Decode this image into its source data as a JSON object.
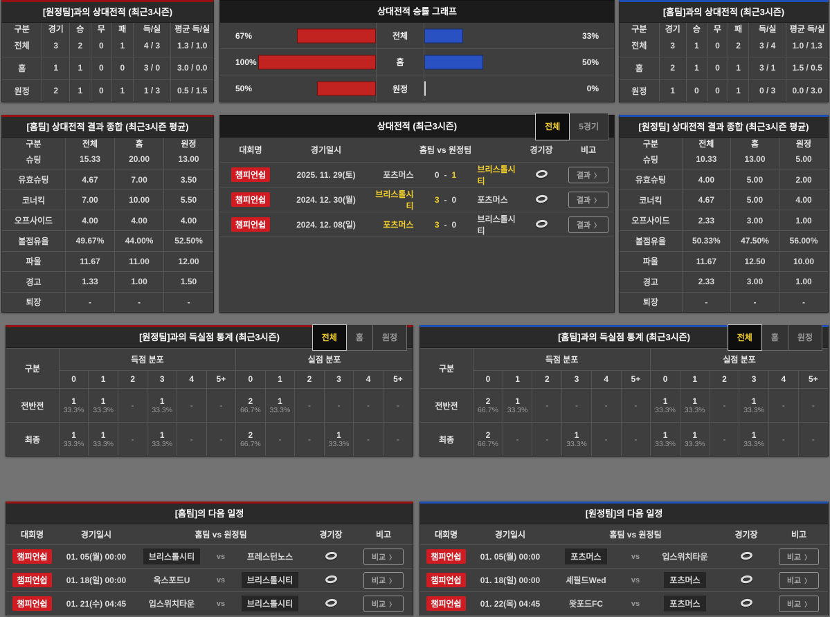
{
  "colors": {
    "accent_red": "#cf1c22",
    "accent_yellow": "#f3cf2a",
    "bar_red": "#c32320",
    "bar_blue": "#2a51c2",
    "panel_border_red": "#961111",
    "panel_border_blue": "#1d4fb4"
  },
  "icons": {
    "chevron_right": "〉",
    "stadium": "stadium-ring"
  },
  "panels": {
    "away_h2h": {
      "title": "[원정팀]과의 상대전적 (최근3시즌)",
      "headers": [
        "구분",
        "경기",
        "승",
        "무",
        "패",
        "득/실",
        "평균 득/실"
      ],
      "rows": [
        {
          "label": "전체",
          "cells": [
            "3",
            "2",
            "0",
            "1",
            "4 / 3",
            "1.3 / 1.0"
          ]
        },
        {
          "label": "홈",
          "cells": [
            "1",
            "1",
            "0",
            "0",
            "3 / 0",
            "3.0 / 0.0"
          ]
        },
        {
          "label": "원정",
          "cells": [
            "2",
            "1",
            "0",
            "1",
            "1 / 3",
            "0.5 / 1.5"
          ]
        }
      ]
    },
    "winrate_chart": {
      "title": "상대전적 승률 그래프",
      "rows": [
        {
          "label": "전체",
          "left_pct": "67%",
          "left_val": 67,
          "right_pct": "33%",
          "right_val": 33
        },
        {
          "label": "홈",
          "left_pct": "100%",
          "left_val": 100,
          "right_pct": "50%",
          "right_val": 50
        },
        {
          "label": "원정",
          "left_pct": "50%",
          "left_val": 50,
          "right_pct": "0%",
          "right_val": 0
        }
      ]
    },
    "home_h2h": {
      "title": "[홈팀]과의 상대전적 (최근3시즌)",
      "headers": [
        "구분",
        "경기",
        "승",
        "무",
        "패",
        "득/실",
        "평균 득/실"
      ],
      "rows": [
        {
          "label": "전체",
          "cells": [
            "3",
            "1",
            "0",
            "2",
            "3 / 4",
            "1.0 / 1.3"
          ]
        },
        {
          "label": "홈",
          "cells": [
            "2",
            "1",
            "0",
            "1",
            "3 / 1",
            "1.5 / 0.5"
          ]
        },
        {
          "label": "원정",
          "cells": [
            "1",
            "0",
            "0",
            "1",
            "0 / 3",
            "0.0 / 3.0"
          ]
        }
      ]
    },
    "home_summary": {
      "title": "[홈팀] 상대전적 결과 종합 (최근3시즌 평균)",
      "headers": [
        "구분",
        "전체",
        "홈",
        "원정"
      ],
      "rows": [
        {
          "label": "슈팅",
          "cells": [
            "15.33",
            "20.00",
            "13.00"
          ]
        },
        {
          "label": "유효슈팅",
          "cells": [
            "4.67",
            "7.00",
            "3.50"
          ]
        },
        {
          "label": "코너킥",
          "cells": [
            "7.00",
            "10.00",
            "5.50"
          ]
        },
        {
          "label": "오프사이드",
          "cells": [
            "4.00",
            "4.00",
            "4.00"
          ]
        },
        {
          "label": "볼점유율",
          "cells": [
            "49.67%",
            "44.00%",
            "52.50%"
          ]
        },
        {
          "label": "파울",
          "cells": [
            "11.67",
            "11.00",
            "12.00"
          ]
        },
        {
          "label": "경고",
          "cells": [
            "1.33",
            "1.00",
            "1.50"
          ]
        },
        {
          "label": "퇴장",
          "cells": [
            "-",
            "-",
            "-"
          ]
        }
      ]
    },
    "h2h_matches": {
      "title": "상대전적 (최근3시즌)",
      "tabs": [
        "전체",
        "5경기"
      ],
      "active_tab": 0,
      "headers": {
        "league": "대회명",
        "date": "경기일시",
        "teams": "홈팀  vs  원정팀",
        "stadium": "경기장",
        "note": "비고"
      },
      "button_label": "결과",
      "rows": [
        {
          "league": "챔피언쉽",
          "date": "2025. 11. 29(토)",
          "home": "포츠머스",
          "home_win": false,
          "score_home": "0",
          "score_away": "1",
          "away": "브리스톨시티",
          "away_win": true
        },
        {
          "league": "챔피언쉽",
          "date": "2024. 12. 30(월)",
          "home": "브리스톨시티",
          "home_win": true,
          "score_home": "3",
          "score_away": "0",
          "away": "포츠머스",
          "away_win": false
        },
        {
          "league": "챔피언쉽",
          "date": "2024. 12. 08(일)",
          "home": "포츠머스",
          "home_win": true,
          "score_home": "3",
          "score_away": "0",
          "away": "브리스톨시티",
          "away_win": false
        }
      ]
    },
    "away_summary": {
      "title": "[원정팀] 상대전적 결과 종합 (최근3시즌 평균)",
      "headers": [
        "구분",
        "전체",
        "홈",
        "원정"
      ],
      "rows": [
        {
          "label": "슈팅",
          "cells": [
            "10.33",
            "13.00",
            "5.00"
          ]
        },
        {
          "label": "유효슈팅",
          "cells": [
            "4.00",
            "5.00",
            "2.00"
          ]
        },
        {
          "label": "코너킥",
          "cells": [
            "4.67",
            "5.00",
            "4.00"
          ]
        },
        {
          "label": "오프사이드",
          "cells": [
            "2.33",
            "3.00",
            "1.00"
          ]
        },
        {
          "label": "볼점유율",
          "cells": [
            "50.33%",
            "47.50%",
            "56.00%"
          ]
        },
        {
          "label": "파울",
          "cells": [
            "11.67",
            "12.50",
            "10.00"
          ]
        },
        {
          "label": "경고",
          "cells": [
            "2.33",
            "3.00",
            "1.00"
          ]
        },
        {
          "label": "퇴장",
          "cells": [
            "-",
            "-",
            "-"
          ]
        }
      ]
    },
    "away_goal_stats": {
      "title": "[원정팀]과의 득실점 통계 (최근3시즌)",
      "tabs": [
        "전체",
        "홈",
        "원정"
      ],
      "active_tab": 0,
      "corner_header": "구분",
      "group_headers": [
        "득점 분포",
        "실점 분포"
      ],
      "col_headers": [
        "0",
        "1",
        "2",
        "3",
        "4",
        "5+"
      ],
      "rows": [
        {
          "label": "전반전",
          "scored": [
            {
              "n": "1",
              "p": "33.3%"
            },
            {
              "n": "1",
              "p": "33.3%"
            },
            null,
            {
              "n": "1",
              "p": "33.3%"
            },
            null,
            null
          ],
          "conceded": [
            {
              "n": "2",
              "p": "66.7%"
            },
            {
              "n": "1",
              "p": "33.3%"
            },
            null,
            null,
            null,
            null
          ]
        },
        {
          "label": "최종",
          "scored": [
            {
              "n": "1",
              "p": "33.3%"
            },
            {
              "n": "1",
              "p": "33.3%"
            },
            null,
            {
              "n": "1",
              "p": "33.3%"
            },
            null,
            null
          ],
          "conceded": [
            {
              "n": "2",
              "p": "66.7%"
            },
            null,
            null,
            {
              "n": "1",
              "p": "33.3%"
            },
            null,
            null
          ]
        }
      ]
    },
    "home_goal_stats": {
      "title": "[홈팀]과의 득실점 통계 (최근3시즌)",
      "tabs": [
        "전체",
        "홈",
        "원정"
      ],
      "active_tab": 0,
      "corner_header": "구분",
      "group_headers": [
        "득점 분포",
        "실점 분포"
      ],
      "col_headers": [
        "0",
        "1",
        "2",
        "3",
        "4",
        "5+"
      ],
      "rows": [
        {
          "label": "전반전",
          "scored": [
            {
              "n": "2",
              "p": "66.7%"
            },
            {
              "n": "1",
              "p": "33.3%"
            },
            null,
            null,
            null,
            null
          ],
          "conceded": [
            {
              "n": "1",
              "p": "33.3%"
            },
            {
              "n": "1",
              "p": "33.3%"
            },
            null,
            {
              "n": "1",
              "p": "33.3%"
            },
            null,
            null
          ]
        },
        {
          "label": "최종",
          "scored": [
            {
              "n": "2",
              "p": "66.7%"
            },
            null,
            null,
            {
              "n": "1",
              "p": "33.3%"
            },
            null,
            null
          ],
          "conceded": [
            {
              "n": "1",
              "p": "33.3%"
            },
            {
              "n": "1",
              "p": "33.3%"
            },
            null,
            {
              "n": "1",
              "p": "33.3%"
            },
            null,
            null
          ]
        }
      ]
    },
    "home_schedule": {
      "title": "[홈팀]의 다음 일정",
      "headers": {
        "league": "대회명",
        "date": "경기일시",
        "teams": "홈팀  vs  원정팀",
        "stadium": "경기장",
        "note": "비고"
      },
      "vs_label": "vs",
      "button_label": "비교",
      "rows": [
        {
          "league": "챔피언쉽",
          "date": "01. 05(월) 00:00",
          "home": "브리스톨시티",
          "home_hl": true,
          "away": "프레스턴노스",
          "away_hl": false
        },
        {
          "league": "챔피언쉽",
          "date": "01. 18(일) 00:00",
          "home": "옥스포드U",
          "home_hl": false,
          "away": "브리스톨시티",
          "away_hl": true
        },
        {
          "league": "챔피언쉽",
          "date": "01. 21(수) 04:45",
          "home": "입스위치타운",
          "home_hl": false,
          "away": "브리스톨시티",
          "away_hl": true
        }
      ]
    },
    "away_schedule": {
      "title": "[원정팀]의 다음 일정",
      "headers": {
        "league": "대회명",
        "date": "경기일시",
        "teams": "홈팀  vs  원정팀",
        "stadium": "경기장",
        "note": "비고"
      },
      "vs_label": "vs",
      "button_label": "비교",
      "rows": [
        {
          "league": "챔피언쉽",
          "date": "01. 05(월) 00:00",
          "home": "포츠머스",
          "home_hl": true,
          "away": "입스위치타운",
          "away_hl": false
        },
        {
          "league": "챔피언쉽",
          "date": "01. 18(일) 00:00",
          "home": "셰필드Wed",
          "home_hl": false,
          "away": "포츠머스",
          "away_hl": true
        },
        {
          "league": "챔피언쉽",
          "date": "01. 22(목) 04:45",
          "home": "왓포드FC",
          "home_hl": false,
          "away": "포츠머스",
          "away_hl": true
        }
      ]
    }
  }
}
